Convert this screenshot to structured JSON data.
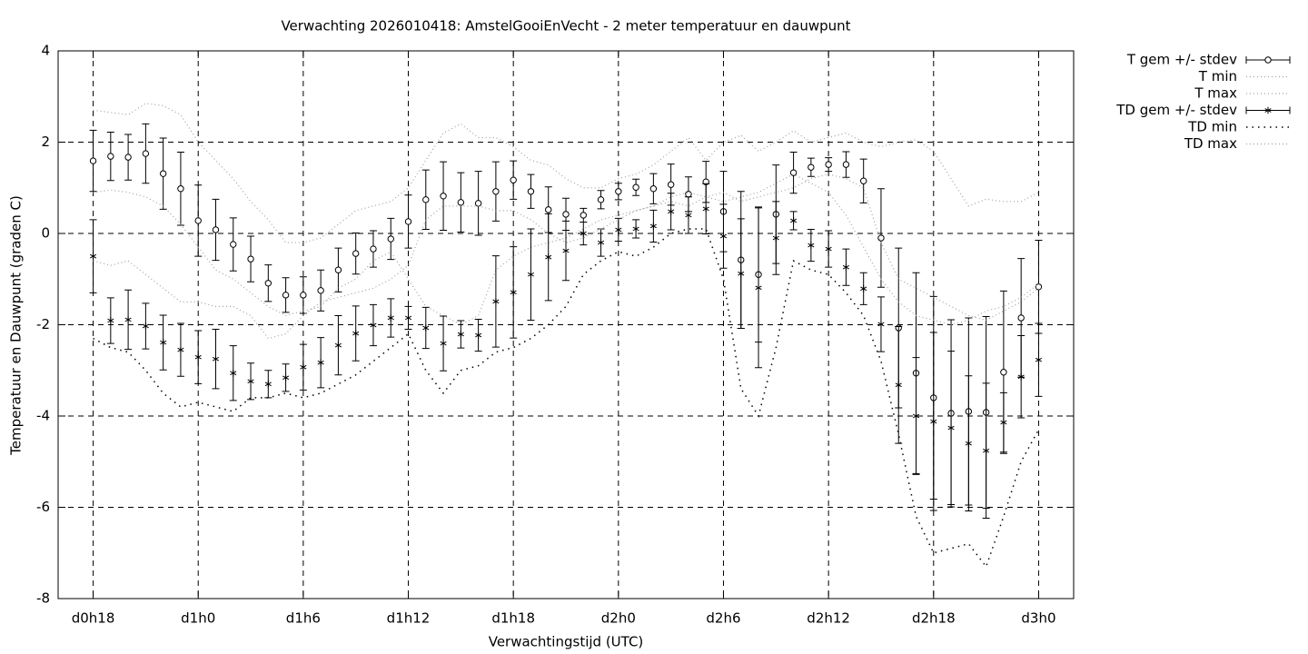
{
  "chart_data": {
    "type": "line",
    "title": "Verwachting 2026010418: AmstelGooiEnVecht - 2 meter temperatuur en dauwpunt",
    "xlabel": "Verwachtingstijd (UTC)",
    "ylabel": "Temperatuur en Dauwpunt (graden C)",
    "x": [
      18,
      19,
      20,
      21,
      22,
      23,
      24,
      25,
      26,
      27,
      28,
      29,
      30,
      31,
      32,
      33,
      34,
      35,
      36,
      37,
      38,
      39,
      40,
      41,
      42,
      43,
      44,
      45,
      46,
      47,
      48,
      49,
      50,
      51,
      52,
      53,
      54,
      55,
      56,
      57,
      58,
      59,
      60,
      61,
      62,
      63,
      64,
      65,
      66,
      67,
      68,
      69,
      70,
      71,
      72
    ],
    "xlim": [
      16,
      74
    ],
    "xticks": [
      {
        "value": 18,
        "label": "d0h18"
      },
      {
        "value": 24,
        "label": "d1h0"
      },
      {
        "value": 30,
        "label": "d1h6"
      },
      {
        "value": 36,
        "label": "d1h12"
      },
      {
        "value": 42,
        "label": "d1h18"
      },
      {
        "value": 48,
        "label": "d2h0"
      },
      {
        "value": 54,
        "label": "d2h6"
      },
      {
        "value": 60,
        "label": "d2h12"
      },
      {
        "value": 66,
        "label": "d2h18"
      },
      {
        "value": 72,
        "label": "d3h0"
      }
    ],
    "ylim": [
      -8,
      4
    ],
    "yticks": [
      -8,
      -6,
      -4,
      -2,
      0,
      2,
      4
    ],
    "grid": true,
    "legend": "outside-top-right",
    "series": [
      {
        "name": "T gem +/- stdev",
        "color": "#000000",
        "marker": "circle",
        "line_style": "none",
        "values": [
          1.59,
          1.69,
          1.67,
          1.75,
          1.31,
          0.98,
          0.28,
          0.08,
          -0.24,
          -0.56,
          -1.09,
          -1.35,
          -1.35,
          -1.25,
          -0.8,
          -0.44,
          -0.34,
          -0.12,
          0.26,
          0.74,
          0.82,
          0.68,
          0.66,
          0.92,
          1.17,
          0.92,
          0.52,
          0.42,
          0.4,
          0.74,
          0.92,
          1.01,
          0.98,
          1.07,
          0.86,
          1.13,
          0.48,
          -0.58,
          -0.9,
          0.42,
          1.33,
          1.45,
          1.51,
          1.51,
          1.15,
          -0.1,
          -2.07,
          -3.06,
          -3.6,
          -3.94,
          -3.9,
          -3.92,
          -3.04,
          -1.85,
          -1.17
        ],
        "errors": [
          0.67,
          0.53,
          0.5,
          0.65,
          0.78,
          0.8,
          0.78,
          0.67,
          0.58,
          0.5,
          0.4,
          0.38,
          0.4,
          0.45,
          0.48,
          0.45,
          0.4,
          0.45,
          0.58,
          0.65,
          0.75,
          0.65,
          0.7,
          0.65,
          0.42,
          0.37,
          0.5,
          0.35,
          0.15,
          0.2,
          0.18,
          0.18,
          0.33,
          0.45,
          0.38,
          0.45,
          0.88,
          1.5,
          1.48,
          1.08,
          0.45,
          0.2,
          0.15,
          0.28,
          0.48,
          1.08,
          1.75,
          2.2,
          2.22,
          2.05,
          2.05,
          2.1,
          1.78,
          1.3,
          1.02
        ]
      },
      {
        "name": "T min",
        "color": "#a0a0a0",
        "marker": "none",
        "line_style": "dotted",
        "values": [
          0.9,
          0.95,
          0.9,
          0.8,
          0.6,
          0.2,
          -0.3,
          -0.8,
          -1.0,
          -1.3,
          -1.6,
          -1.8,
          -1.7,
          -1.6,
          -1.2,
          -1.0,
          -0.6,
          -0.4,
          -1.0,
          -1.6,
          -1.8,
          -2.0,
          -1.8,
          -0.8,
          -0.5,
          -0.3,
          -0.2,
          -0.1,
          0.1,
          0.3,
          0.4,
          0.5,
          0.6,
          0.7,
          0.6,
          0.8,
          0.9,
          0.7,
          0.8,
          0.9,
          1.0,
          1.2,
          1.3,
          1.2,
          1.0,
          -0.2,
          -1.0,
          -1.2,
          -1.4,
          -1.6,
          -1.8,
          -1.9,
          -1.7,
          -1.5,
          -1.2
        ]
      },
      {
        "name": "T max",
        "color": "#a0a0a0",
        "marker": "none",
        "line_style": "dotted",
        "values": [
          2.7,
          2.65,
          2.6,
          2.85,
          2.8,
          2.6,
          2.0,
          1.6,
          1.2,
          0.7,
          0.3,
          -0.2,
          -0.2,
          -0.1,
          0.2,
          0.5,
          0.6,
          0.7,
          1.0,
          1.6,
          2.2,
          2.4,
          2.1,
          2.1,
          1.9,
          1.6,
          1.5,
          1.2,
          1.0,
          1.0,
          1.2,
          1.3,
          1.5,
          1.8,
          2.1,
          1.6,
          2.0,
          2.15,
          1.8,
          2.0,
          2.25,
          2.0,
          2.1,
          2.2,
          2.0,
          1.9,
          2.0,
          2.05,
          1.8,
          1.2,
          0.6,
          0.75,
          0.7,
          0.7,
          0.9
        ]
      },
      {
        "name": "TD gem +/- stdev",
        "color": "#000000",
        "marker": "asterisk",
        "line_style": "none",
        "values": [
          -0.5,
          -1.91,
          -1.89,
          -2.03,
          -2.39,
          -2.55,
          -2.71,
          -2.75,
          -3.06,
          -3.24,
          -3.3,
          -3.16,
          -2.93,
          -2.83,
          -2.45,
          -2.19,
          -2.01,
          -1.85,
          -1.85,
          -2.07,
          -2.41,
          -2.21,
          -2.23,
          -1.49,
          -1.29,
          -0.9,
          -0.52,
          -0.38,
          0,
          -0.2,
          0.08,
          0.1,
          0.16,
          0.48,
          0.4,
          0.54,
          -0.06,
          -0.88,
          -1.19,
          -0.1,
          0.28,
          -0.26,
          -0.34,
          -0.74,
          -1.21,
          -1.99,
          -3.32,
          -4.0,
          -4.12,
          -4.26,
          -4.6,
          -4.76,
          -4.14,
          -3.14,
          -2.77
        ],
        "errors": [
          0.8,
          0.5,
          0.65,
          0.5,
          0.6,
          0.58,
          0.58,
          0.65,
          0.6,
          0.4,
          0.3,
          0.3,
          0.5,
          0.55,
          0.65,
          0.6,
          0.45,
          0.42,
          0.25,
          0.45,
          0.6,
          0.3,
          0.35,
          1.0,
          1.0,
          1.0,
          0.95,
          0.65,
          0.25,
          0.3,
          0.25,
          0.2,
          0.35,
          0.4,
          0.4,
          0.55,
          0.7,
          1.2,
          1.75,
          0.8,
          0.2,
          0.35,
          0.4,
          0.4,
          0.35,
          0.6,
          1.28,
          1.28,
          1.95,
          1.68,
          1.48,
          1.48,
          0.65,
          0.9,
          0.8
        ]
      },
      {
        "name": "TD min",
        "color": "#000000",
        "marker": "none",
        "line_style": "sparse-dotted",
        "values": [
          -2.3,
          -2.5,
          -2.6,
          -3.0,
          -3.5,
          -3.8,
          -3.7,
          -3.8,
          -3.9,
          -3.6,
          -3.6,
          -3.5,
          -3.6,
          -3.5,
          -3.3,
          -3.1,
          -2.8,
          -2.5,
          -2.2,
          -3.0,
          -3.5,
          -3.0,
          -2.9,
          -2.6,
          -2.5,
          -2.3,
          -2.0,
          -1.6,
          -0.9,
          -0.6,
          -0.4,
          -0.5,
          -0.3,
          0.0,
          0.1,
          0.1,
          -1.0,
          -3.4,
          -4.0,
          -2.5,
          -0.6,
          -0.8,
          -0.9,
          -1.3,
          -1.8,
          -2.8,
          -4.4,
          -6.2,
          -7.0,
          -6.9,
          -6.8,
          -7.3,
          -6.2,
          -5.0,
          -4.3
        ]
      },
      {
        "name": "TD max",
        "color": "#a0a0a0",
        "marker": "none",
        "line_style": "dotted",
        "values": [
          -0.6,
          -0.7,
          -0.6,
          -0.9,
          -1.2,
          -1.5,
          -1.5,
          -1.6,
          -1.6,
          -1.8,
          -2.3,
          -2.2,
          -1.8,
          -1.5,
          -1.4,
          -1.3,
          -1.2,
          -1.0,
          -0.7,
          0.3,
          0.6,
          0.6,
          0.6,
          0.5,
          0.5,
          0.3,
          0.0,
          -0.2,
          -0.1,
          0.1,
          0.3,
          0.5,
          0.6,
          0.8,
          0.9,
          0.8,
          0.7,
          0.8,
          0.9,
          1.1,
          1.3,
          1.1,
          0.9,
          0.4,
          -0.3,
          -1.0,
          -1.5,
          -1.8,
          -1.9,
          -2.0,
          -1.9,
          -1.7,
          -1.6,
          -1.4,
          -1.1
        ]
      }
    ]
  }
}
